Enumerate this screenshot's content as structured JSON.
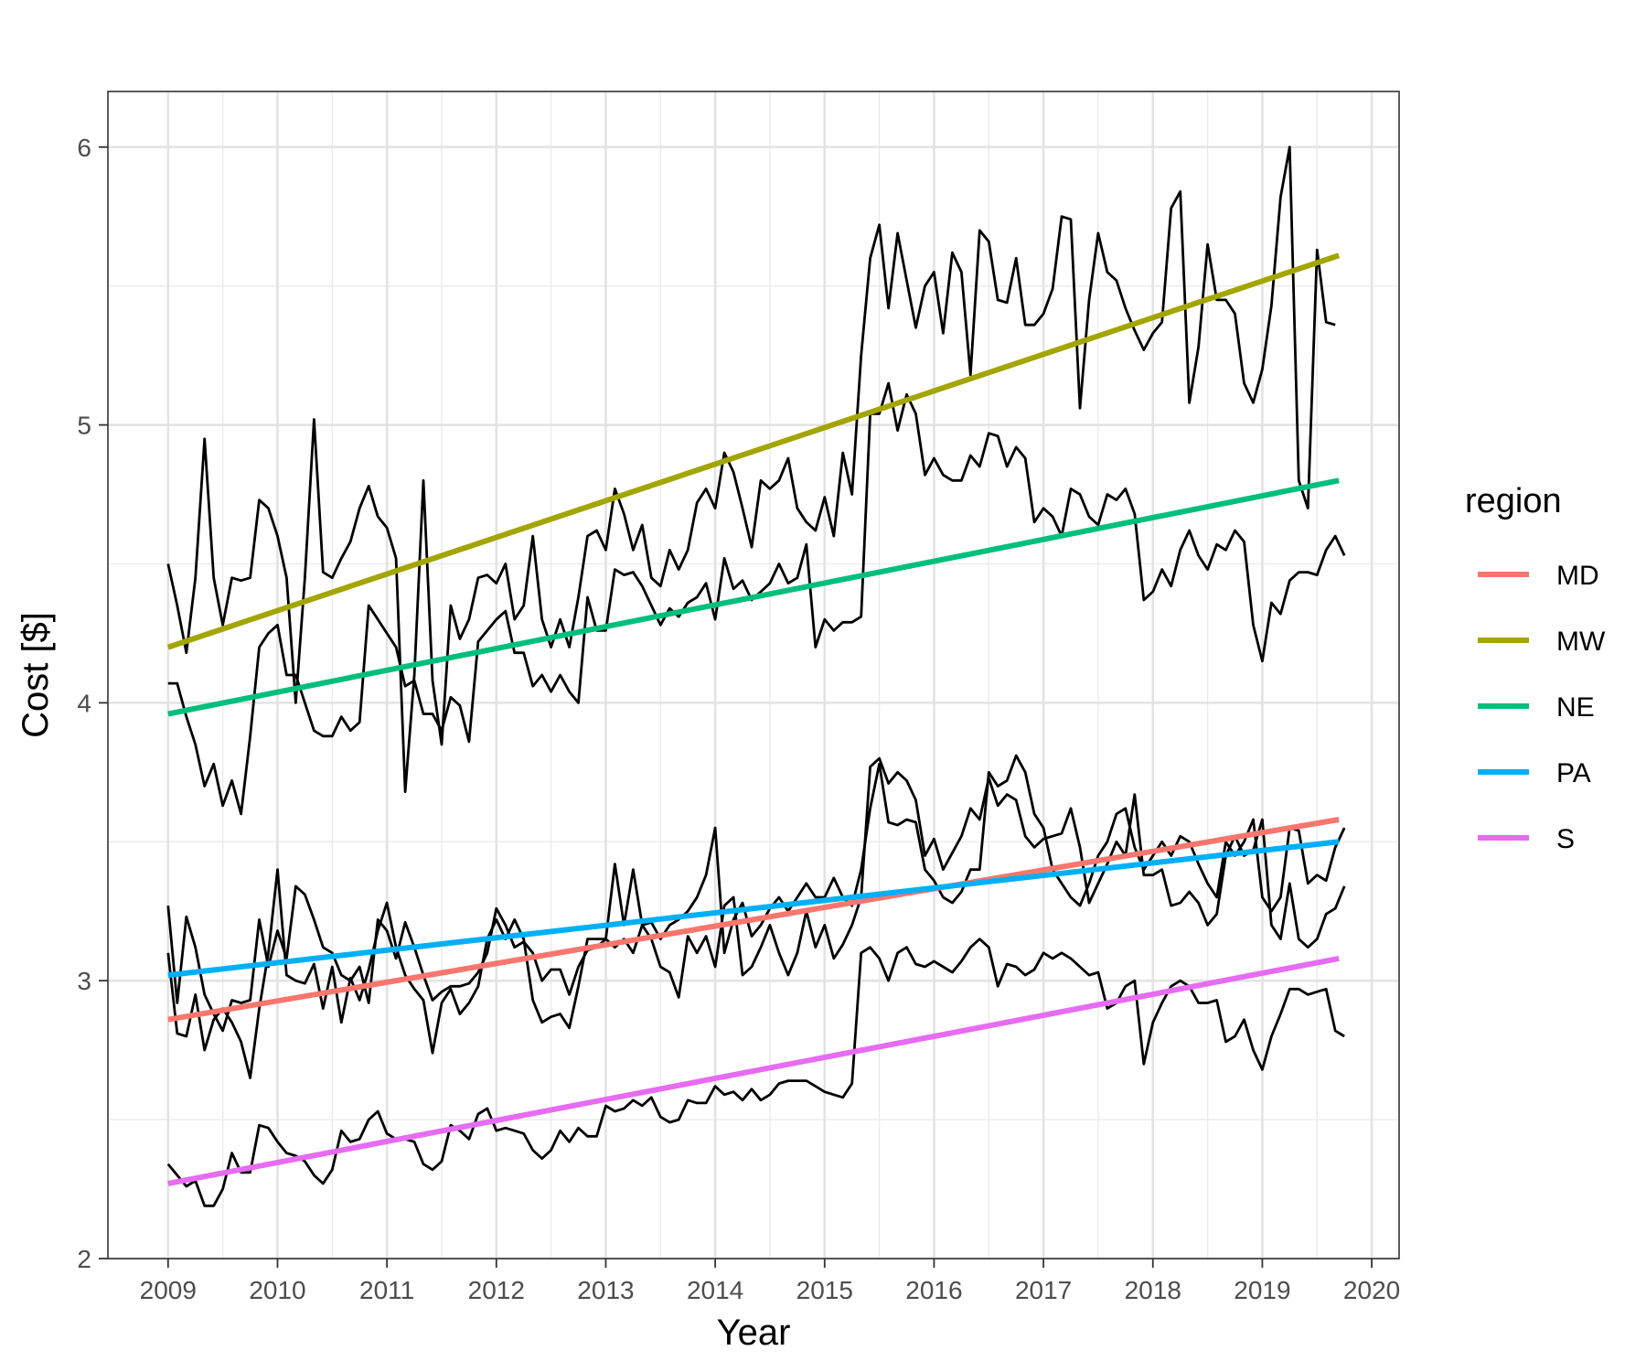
{
  "chart_data": {
    "type": "line",
    "title": "",
    "xlabel": "Year",
    "ylabel": "Cost [$]",
    "xlim": [
      2008.45,
      2020.25
    ],
    "ylim": [
      2,
      6.2
    ],
    "x_ticks": [
      2009,
      2010,
      2011,
      2012,
      2013,
      2014,
      2015,
      2016,
      2017,
      2018,
      2019,
      2020
    ],
    "x_tick_labels": [
      "2009",
      "2010",
      "2011",
      "2012",
      "2013",
      "2014",
      "2015",
      "2016",
      "2017",
      "2018",
      "2019",
      "2020"
    ],
    "y_ticks": [
      2,
      3,
      4,
      5,
      6
    ],
    "y_tick_labels": [
      "2",
      "3",
      "4",
      "5",
      "6"
    ],
    "grid": true,
    "legend": {
      "title": "region",
      "position": "right",
      "entries": [
        {
          "label": "MD",
          "color": "#F8766D"
        },
        {
          "label": "MW",
          "color": "#A3A500"
        },
        {
          "label": "NE",
          "color": "#00BF7D"
        },
        {
          "label": "PA",
          "color": "#00B0F6"
        },
        {
          "label": "S",
          "color": "#E76BF3"
        }
      ]
    },
    "raw_series_color": "#000000",
    "raw_series_start_year": 2009,
    "raw_series_monthly": [
      {
        "name": "MW",
        "values": [
          4.5,
          4.35,
          4.18,
          4.45,
          4.95,
          4.45,
          4.28,
          4.45,
          4.44,
          4.45,
          4.73,
          4.7,
          4.6,
          4.45,
          4.0,
          4.45,
          5.02,
          4.47,
          4.45,
          4.52,
          4.58,
          4.7,
          4.78,
          4.67,
          4.63,
          4.52,
          3.68,
          4.1,
          4.8,
          4.08,
          3.85,
          4.35,
          4.23,
          4.3,
          4.45,
          4.46,
          4.43,
          4.5,
          4.3,
          4.35,
          4.6,
          4.3,
          4.2,
          4.3,
          4.2,
          4.38,
          4.6,
          4.62,
          4.55,
          4.77,
          4.68,
          4.55,
          4.64,
          4.45,
          4.42,
          4.55,
          4.48,
          4.55,
          4.72,
          4.77,
          4.7,
          4.9,
          4.83,
          4.7,
          4.56,
          4.8,
          4.77,
          4.8,
          4.88,
          4.7,
          4.65,
          4.62,
          4.74,
          4.6,
          4.9,
          4.75,
          5.25,
          5.6,
          5.72,
          5.42,
          5.69,
          5.52,
          5.35,
          5.5,
          5.55,
          5.33,
          5.62,
          5.55,
          5.18,
          5.7,
          5.66,
          5.45,
          5.44,
          5.6,
          5.36,
          5.36,
          5.4,
          5.49,
          5.75,
          5.74,
          5.06,
          5.45,
          5.69,
          5.55,
          5.52,
          5.42,
          5.34,
          5.27,
          5.33,
          5.37,
          5.78,
          5.84,
          5.08,
          5.28,
          5.65,
          5.45,
          5.45,
          5.4,
          5.15,
          5.08,
          5.2,
          5.43,
          5.82,
          6.0,
          4.8,
          4.7,
          5.63,
          5.37,
          5.36
        ]
      },
      {
        "name": "NE",
        "values": [
          4.07,
          4.07,
          3.95,
          3.85,
          3.7,
          3.78,
          3.63,
          3.72,
          3.6,
          3.88,
          4.2,
          4.25,
          4.28,
          4.1,
          4.1,
          4.0,
          3.9,
          3.88,
          3.88,
          3.95,
          3.9,
          3.93,
          4.35,
          4.3,
          4.25,
          4.2,
          4.06,
          4.08,
          3.96,
          3.96,
          3.9,
          4.02,
          3.99,
          3.86,
          4.22,
          4.26,
          4.3,
          4.33,
          4.18,
          4.18,
          4.06,
          4.1,
          4.04,
          4.1,
          4.04,
          4.0,
          4.38,
          4.26,
          4.26,
          4.48,
          4.46,
          4.47,
          4.42,
          4.35,
          4.28,
          4.34,
          4.31,
          4.36,
          4.38,
          4.43,
          4.3,
          4.52,
          4.41,
          4.44,
          4.37,
          4.4,
          4.43,
          4.5,
          4.43,
          4.45,
          4.57,
          4.2,
          4.3,
          4.26,
          4.29,
          4.29,
          4.31,
          5.04,
          5.04,
          5.15,
          4.98,
          5.11,
          5.04,
          4.82,
          4.88,
          4.82,
          4.8,
          4.8,
          4.89,
          4.85,
          4.97,
          4.96,
          4.85,
          4.92,
          4.88,
          4.65,
          4.7,
          4.67,
          4.6,
          4.77,
          4.75,
          4.67,
          4.64,
          4.75,
          4.73,
          4.77,
          4.68,
          4.37,
          4.4,
          4.48,
          4.42,
          4.55,
          4.62,
          4.53,
          4.48,
          4.57,
          4.55,
          4.62,
          4.58,
          4.28,
          4.15,
          4.36,
          4.32,
          4.44,
          4.47,
          4.47,
          4.46,
          4.55,
          4.6,
          4.53
        ]
      },
      {
        "name": "MD",
        "values": [
          3.27,
          2.92,
          3.23,
          3.12,
          2.95,
          2.88,
          2.82,
          2.93,
          2.92,
          2.93,
          3.22,
          3.05,
          3.18,
          3.08,
          3.34,
          3.31,
          3.22,
          3.12,
          3.1,
          3.02,
          3.0,
          3.05,
          2.92,
          3.22,
          3.18,
          3.08,
          3.21,
          3.12,
          3.02,
          2.93,
          2.96,
          2.98,
          2.98,
          2.99,
          3.03,
          3.1,
          3.26,
          3.2,
          3.12,
          3.14,
          3.1,
          3.0,
          3.04,
          3.04,
          2.95,
          3.05,
          3.11,
          3.12,
          3.15,
          3.42,
          3.2,
          3.4,
          3.2,
          3.15,
          3.05,
          3.03,
          2.94,
          3.16,
          3.1,
          3.16,
          3.05,
          3.27,
          3.3,
          3.02,
          3.05,
          3.12,
          3.2,
          3.1,
          3.02,
          3.1,
          3.25,
          3.12,
          3.2,
          3.08,
          3.13,
          3.2,
          3.3,
          3.77,
          3.8,
          3.71,
          3.75,
          3.72,
          3.65,
          3.45,
          3.51,
          3.4,
          3.46,
          3.52,
          3.62,
          3.58,
          3.73,
          3.63,
          3.67,
          3.65,
          3.52,
          3.48,
          3.51,
          3.52,
          3.53,
          3.62,
          3.48,
          3.28,
          3.35,
          3.42,
          3.5,
          3.45,
          3.67,
          3.38,
          3.38,
          3.4,
          3.27,
          3.28,
          3.32,
          3.28,
          3.2,
          3.24,
          3.45,
          3.52,
          3.45,
          3.47,
          3.58,
          3.2,
          3.15,
          3.35,
          3.15,
          3.12,
          3.15,
          3.24,
          3.26,
          3.34
        ]
      },
      {
        "name": "PA",
        "values": [
          3.1,
          2.81,
          2.8,
          2.95,
          2.75,
          2.86,
          2.9,
          2.85,
          2.78,
          2.65,
          2.9,
          3.1,
          3.4,
          3.02,
          3.0,
          2.99,
          3.06,
          2.9,
          3.05,
          2.85,
          3.01,
          2.93,
          3.04,
          3.18,
          3.28,
          3.12,
          3.02,
          2.97,
          2.93,
          2.74,
          2.92,
          2.97,
          2.88,
          2.92,
          2.98,
          3.15,
          3.22,
          3.15,
          3.22,
          3.15,
          2.93,
          2.85,
          2.87,
          2.88,
          2.83,
          2.98,
          3.15,
          3.15,
          3.15,
          3.12,
          3.15,
          3.1,
          3.2,
          3.21,
          3.15,
          3.2,
          3.22,
          3.25,
          3.3,
          3.38,
          3.55,
          3.1,
          3.22,
          3.28,
          3.16,
          3.2,
          3.26,
          3.3,
          3.25,
          3.3,
          3.35,
          3.3,
          3.3,
          3.37,
          3.3,
          3.27,
          3.4,
          3.62,
          3.78,
          3.57,
          3.56,
          3.58,
          3.57,
          3.4,
          3.36,
          3.3,
          3.28,
          3.32,
          3.4,
          3.4,
          3.75,
          3.7,
          3.72,
          3.81,
          3.75,
          3.6,
          3.55,
          3.4,
          3.35,
          3.3,
          3.27,
          3.35,
          3.45,
          3.5,
          3.6,
          3.62,
          3.48,
          3.4,
          3.45,
          3.5,
          3.45,
          3.52,
          3.5,
          3.42,
          3.35,
          3.3,
          3.5,
          3.45,
          3.5,
          3.58,
          3.3,
          3.25,
          3.3,
          3.55,
          3.54,
          3.35,
          3.38,
          3.36,
          3.48,
          3.55
        ]
      },
      {
        "name": "S",
        "values": [
          2.34,
          2.3,
          2.26,
          2.28,
          2.19,
          2.19,
          2.25,
          2.38,
          2.31,
          2.31,
          2.48,
          2.47,
          2.42,
          2.38,
          2.37,
          2.35,
          2.3,
          2.27,
          2.32,
          2.46,
          2.42,
          2.43,
          2.5,
          2.53,
          2.45,
          2.43,
          2.43,
          2.42,
          2.34,
          2.32,
          2.35,
          2.48,
          2.46,
          2.43,
          2.52,
          2.54,
          2.46,
          2.47,
          2.46,
          2.45,
          2.39,
          2.36,
          2.39,
          2.46,
          2.42,
          2.47,
          2.44,
          2.44,
          2.55,
          2.53,
          2.54,
          2.57,
          2.55,
          2.58,
          2.51,
          2.49,
          2.5,
          2.57,
          2.56,
          2.56,
          2.62,
          2.59,
          2.6,
          2.57,
          2.61,
          2.57,
          2.59,
          2.63,
          2.64,
          2.64,
          2.64,
          2.62,
          2.6,
          2.59,
          2.58,
          2.63,
          3.1,
          3.12,
          3.08,
          3.0,
          3.1,
          3.12,
          3.06,
          3.05,
          3.07,
          3.05,
          3.03,
          3.07,
          3.12,
          3.15,
          3.12,
          2.98,
          3.06,
          3.05,
          3.02,
          3.04,
          3.1,
          3.08,
          3.1,
          3.08,
          3.05,
          3.02,
          3.03,
          2.9,
          2.92,
          2.98,
          3.0,
          2.7,
          2.85,
          2.92,
          2.98,
          3.0,
          2.98,
          2.92,
          2.92,
          2.93,
          2.78,
          2.8,
          2.86,
          2.75,
          2.68,
          2.8,
          2.88,
          2.97,
          2.97,
          2.95,
          2.96,
          2.97,
          2.82,
          2.8
        ]
      }
    ],
    "trend_lines": [
      {
        "name": "MD",
        "x": [
          2009.0,
          2019.7
        ],
        "y": [
          2.86,
          3.58
        ]
      },
      {
        "name": "MW",
        "x": [
          2009.0,
          2019.7
        ],
        "y": [
          4.2,
          5.61
        ]
      },
      {
        "name": "NE",
        "x": [
          2009.0,
          2019.7
        ],
        "y": [
          3.96,
          4.8
        ]
      },
      {
        "name": "PA",
        "x": [
          2009.0,
          2019.7
        ],
        "y": [
          3.02,
          3.5
        ]
      },
      {
        "name": "S",
        "x": [
          2009.0,
          2019.7
        ],
        "y": [
          2.27,
          3.08
        ]
      }
    ]
  }
}
